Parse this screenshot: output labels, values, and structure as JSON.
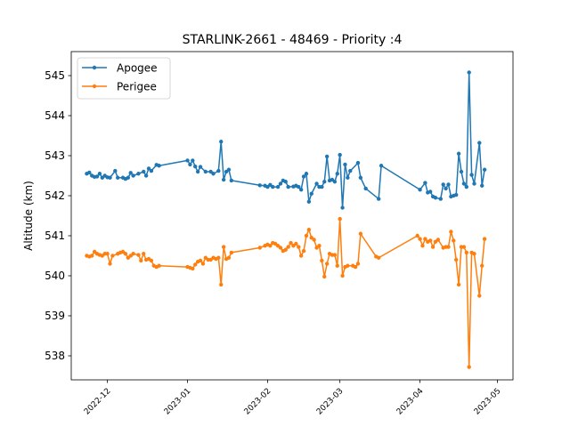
{
  "chart_data": {
    "type": "line",
    "title": "STARLINK-2661 - 48469 - Priority :4",
    "xlabel": "",
    "ylabel": "Altitude (km)",
    "ylim": [
      537.4,
      545.6
    ],
    "xlim": [
      "2022-11-17",
      "2023-05-07"
    ],
    "yticks": [
      538,
      539,
      540,
      541,
      542,
      543,
      544,
      545
    ],
    "xticks": [
      "2022-12",
      "2023-01",
      "2023-02",
      "2023-03",
      "2023-04",
      "2023-05"
    ],
    "legend_position": "top-left",
    "grid": false,
    "series": [
      {
        "name": "Apogee",
        "color": "#1f77b4",
        "points": [
          [
            "2022-11-23",
            542.55
          ],
          [
            "2022-11-24",
            542.58
          ],
          [
            "2022-11-25",
            542.5
          ],
          [
            "2022-11-26",
            542.47
          ],
          [
            "2022-11-27",
            542.48
          ],
          [
            "2022-11-28",
            542.55
          ],
          [
            "2022-11-29",
            542.45
          ],
          [
            "2022-11-30",
            542.5
          ],
          [
            "2022-12-01",
            542.46
          ],
          [
            "2022-12-02",
            542.45
          ],
          [
            "2022-12-04",
            542.62
          ],
          [
            "2022-12-05",
            542.45
          ],
          [
            "2022-12-07",
            542.45
          ],
          [
            "2022-12-08",
            542.42
          ],
          [
            "2022-12-09",
            542.45
          ],
          [
            "2022-12-10",
            542.57
          ],
          [
            "2022-12-11",
            542.5
          ],
          [
            "2022-12-13",
            542.55
          ],
          [
            "2022-12-15",
            542.6
          ],
          [
            "2022-12-16",
            542.5
          ],
          [
            "2022-12-17",
            542.68
          ],
          [
            "2022-12-18",
            542.62
          ],
          [
            "2022-12-20",
            542.77
          ],
          [
            "2022-12-21",
            542.75
          ],
          [
            "2023-01-01",
            542.88
          ],
          [
            "2023-01-02",
            542.78
          ],
          [
            "2023-01-03",
            542.88
          ],
          [
            "2023-01-04",
            542.73
          ],
          [
            "2023-01-05",
            542.6
          ],
          [
            "2023-01-06",
            542.72
          ],
          [
            "2023-01-08",
            542.6
          ],
          [
            "2023-01-10",
            542.6
          ],
          [
            "2023-01-11",
            542.55
          ],
          [
            "2023-01-13",
            542.62
          ],
          [
            "2023-01-14",
            543.35
          ],
          [
            "2023-01-15",
            542.4
          ],
          [
            "2023-01-16",
            542.6
          ],
          [
            "2023-01-17",
            542.65
          ],
          [
            "2023-01-18",
            542.38
          ],
          [
            "2023-01-29",
            542.26
          ],
          [
            "2023-01-31",
            542.25
          ],
          [
            "2023-02-01",
            542.22
          ],
          [
            "2023-02-02",
            542.27
          ],
          [
            "2023-02-03",
            542.22
          ],
          [
            "2023-02-05",
            542.22
          ],
          [
            "2023-02-06",
            542.3
          ],
          [
            "2023-02-07",
            542.38
          ],
          [
            "2023-02-08",
            542.35
          ],
          [
            "2023-02-09",
            542.22
          ],
          [
            "2023-02-11",
            542.23
          ],
          [
            "2023-02-12",
            542.25
          ],
          [
            "2023-02-13",
            542.22
          ],
          [
            "2023-02-14",
            542.15
          ],
          [
            "2023-02-15",
            542.48
          ],
          [
            "2023-02-16",
            542.55
          ],
          [
            "2023-02-17",
            541.85
          ],
          [
            "2023-02-18",
            542.05
          ],
          [
            "2023-02-20",
            542.3
          ],
          [
            "2023-02-21",
            542.22
          ],
          [
            "2023-02-22",
            542.22
          ],
          [
            "2023-02-23",
            542.35
          ],
          [
            "2023-02-24",
            542.98
          ],
          [
            "2023-02-25",
            542.38
          ],
          [
            "2023-02-26",
            542.4
          ],
          [
            "2023-02-27",
            542.35
          ],
          [
            "2023-02-28",
            542.55
          ],
          [
            "2023-03-01",
            543.02
          ],
          [
            "2023-03-02",
            541.7
          ],
          [
            "2023-03-03",
            542.78
          ],
          [
            "2023-03-04",
            542.45
          ],
          [
            "2023-03-05",
            542.62
          ],
          [
            "2023-03-08",
            542.82
          ],
          [
            "2023-03-09",
            542.45
          ],
          [
            "2023-03-11",
            542.18
          ],
          [
            "2023-03-16",
            541.92
          ],
          [
            "2023-03-17",
            542.75
          ],
          [
            "2023-04-01",
            542.15
          ],
          [
            "2023-04-03",
            542.32
          ],
          [
            "2023-04-04",
            542.08
          ],
          [
            "2023-04-05",
            542.1
          ],
          [
            "2023-04-06",
            541.98
          ],
          [
            "2023-04-07",
            541.95
          ],
          [
            "2023-04-09",
            541.92
          ],
          [
            "2023-04-10",
            542.28
          ],
          [
            "2023-04-11",
            542.18
          ],
          [
            "2023-04-12",
            542.28
          ],
          [
            "2023-04-13",
            541.98
          ],
          [
            "2023-04-14",
            542.0
          ],
          [
            "2023-04-15",
            542.02
          ],
          [
            "2023-04-16",
            543.05
          ],
          [
            "2023-04-17",
            542.6
          ],
          [
            "2023-04-18",
            542.3
          ],
          [
            "2023-04-19",
            542.22
          ],
          [
            "2023-04-20",
            545.08
          ],
          [
            "2023-04-21",
            542.52
          ],
          [
            "2023-04-22",
            542.3
          ],
          [
            "2023-04-24",
            543.32
          ],
          [
            "2023-04-25",
            542.25
          ],
          [
            "2023-04-26",
            542.65
          ]
        ]
      },
      {
        "name": "Perigee",
        "color": "#ff7f0e",
        "points": [
          [
            "2022-11-23",
            540.5
          ],
          [
            "2022-11-24",
            540.48
          ],
          [
            "2022-11-25",
            540.5
          ],
          [
            "2022-11-26",
            540.6
          ],
          [
            "2022-11-27",
            540.55
          ],
          [
            "2022-11-28",
            540.52
          ],
          [
            "2022-11-29",
            540.5
          ],
          [
            "2022-11-30",
            540.55
          ],
          [
            "2022-12-01",
            540.55
          ],
          [
            "2022-12-02",
            540.3
          ],
          [
            "2022-12-03",
            540.5
          ],
          [
            "2022-12-05",
            540.55
          ],
          [
            "2022-12-06",
            540.58
          ],
          [
            "2022-12-07",
            540.6
          ],
          [
            "2022-12-08",
            540.55
          ],
          [
            "2022-12-09",
            540.45
          ],
          [
            "2022-12-10",
            540.5
          ],
          [
            "2022-12-11",
            540.55
          ],
          [
            "2022-12-13",
            540.52
          ],
          [
            "2022-12-14",
            540.38
          ],
          [
            "2022-12-15",
            540.55
          ],
          [
            "2022-12-16",
            540.4
          ],
          [
            "2022-12-17",
            540.42
          ],
          [
            "2022-12-18",
            540.38
          ],
          [
            "2022-12-19",
            540.25
          ],
          [
            "2022-12-20",
            540.22
          ],
          [
            "2022-12-21",
            540.25
          ],
          [
            "2023-01-01",
            540.22
          ],
          [
            "2023-01-02",
            540.2
          ],
          [
            "2023-01-03",
            540.18
          ],
          [
            "2023-01-04",
            540.28
          ],
          [
            "2023-01-05",
            540.35
          ],
          [
            "2023-01-06",
            540.38
          ],
          [
            "2023-01-07",
            540.3
          ],
          [
            "2023-01-08",
            540.45
          ],
          [
            "2023-01-09",
            540.4
          ],
          [
            "2023-01-10",
            540.4
          ],
          [
            "2023-01-11",
            540.45
          ],
          [
            "2023-01-12",
            540.42
          ],
          [
            "2023-01-13",
            540.45
          ],
          [
            "2023-01-14",
            539.78
          ],
          [
            "2023-01-15",
            540.72
          ],
          [
            "2023-01-16",
            540.42
          ],
          [
            "2023-01-17",
            540.45
          ],
          [
            "2023-01-18",
            540.58
          ],
          [
            "2023-01-29",
            540.7
          ],
          [
            "2023-01-31",
            540.75
          ],
          [
            "2023-02-01",
            540.78
          ],
          [
            "2023-02-02",
            540.75
          ],
          [
            "2023-02-03",
            540.82
          ],
          [
            "2023-02-04",
            540.8
          ],
          [
            "2023-02-05",
            540.75
          ],
          [
            "2023-02-06",
            540.7
          ],
          [
            "2023-02-07",
            540.62
          ],
          [
            "2023-02-08",
            540.65
          ],
          [
            "2023-02-09",
            540.72
          ],
          [
            "2023-02-10",
            540.82
          ],
          [
            "2023-02-11",
            540.75
          ],
          [
            "2023-02-12",
            540.8
          ],
          [
            "2023-02-13",
            540.72
          ],
          [
            "2023-02-14",
            540.5
          ],
          [
            "2023-02-15",
            540.62
          ],
          [
            "2023-02-16",
            541.0
          ],
          [
            "2023-02-17",
            541.15
          ],
          [
            "2023-02-18",
            540.95
          ],
          [
            "2023-02-19",
            540.9
          ],
          [
            "2023-02-20",
            540.7
          ],
          [
            "2023-02-21",
            540.75
          ],
          [
            "2023-02-22",
            540.38
          ],
          [
            "2023-02-23",
            539.98
          ],
          [
            "2023-02-24",
            540.3
          ],
          [
            "2023-02-25",
            540.55
          ],
          [
            "2023-02-26",
            540.52
          ],
          [
            "2023-02-27",
            540.52
          ],
          [
            "2023-02-28",
            540.25
          ],
          [
            "2023-03-01",
            541.42
          ],
          [
            "2023-03-02",
            540.0
          ],
          [
            "2023-03-03",
            540.22
          ],
          [
            "2023-03-04",
            540.25
          ],
          [
            "2023-03-06",
            540.25
          ],
          [
            "2023-03-07",
            540.22
          ],
          [
            "2023-03-08",
            540.3
          ],
          [
            "2023-03-09",
            541.05
          ],
          [
            "2023-03-15",
            540.48
          ],
          [
            "2023-03-16",
            540.45
          ],
          [
            "2023-03-31",
            541.0
          ],
          [
            "2023-04-01",
            540.92
          ],
          [
            "2023-04-02",
            540.75
          ],
          [
            "2023-04-03",
            540.92
          ],
          [
            "2023-04-04",
            540.85
          ],
          [
            "2023-04-05",
            540.88
          ],
          [
            "2023-04-06",
            540.72
          ],
          [
            "2023-04-07",
            540.85
          ],
          [
            "2023-04-08",
            540.9
          ],
          [
            "2023-04-10",
            540.7
          ],
          [
            "2023-04-11",
            540.72
          ],
          [
            "2023-04-12",
            540.72
          ],
          [
            "2023-04-13",
            541.1
          ],
          [
            "2023-04-14",
            540.88
          ],
          [
            "2023-04-15",
            540.4
          ],
          [
            "2023-04-16",
            539.78
          ],
          [
            "2023-04-17",
            540.72
          ],
          [
            "2023-04-18",
            540.72
          ],
          [
            "2023-04-19",
            540.58
          ],
          [
            "2023-04-20",
            537.72
          ],
          [
            "2023-04-21",
            540.58
          ],
          [
            "2023-04-22",
            540.55
          ],
          [
            "2023-04-24",
            539.5
          ],
          [
            "2023-04-25",
            540.25
          ],
          [
            "2023-04-26",
            540.92
          ]
        ]
      }
    ]
  }
}
